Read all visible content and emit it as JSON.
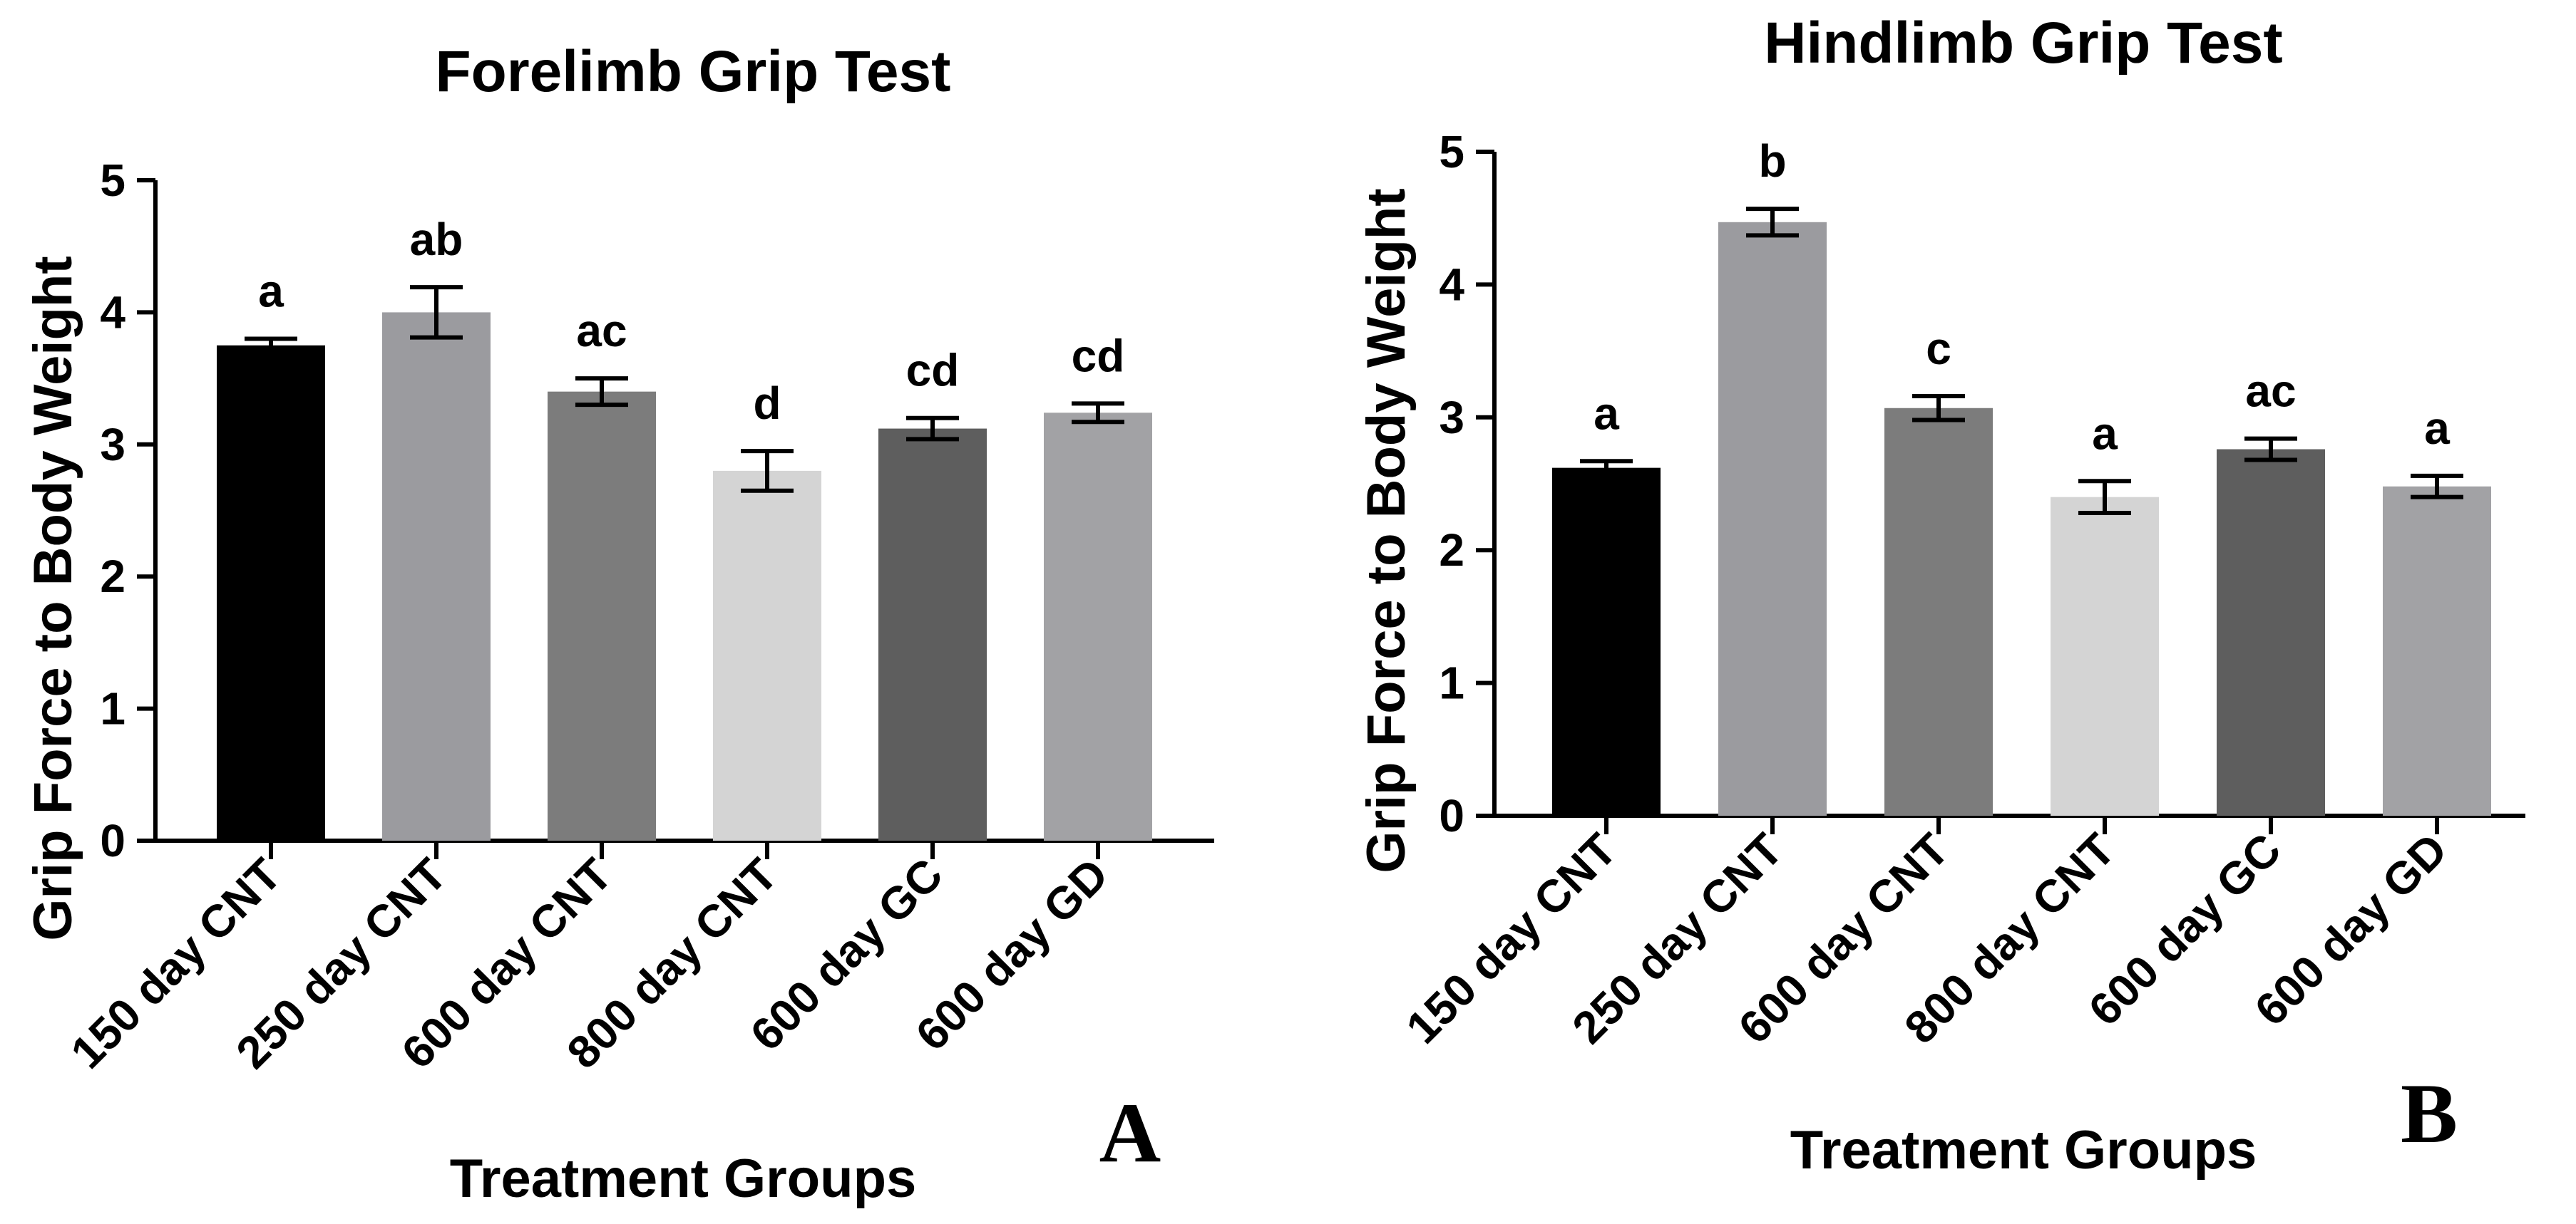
{
  "chart_data": [
    {
      "type": "bar",
      "title": "Forelimb Grip Test",
      "xlabel": "Treatment Groups",
      "ylabel": "Grip Force to Body Weight",
      "panel_label": "A",
      "ylim": [
        0,
        5
      ],
      "yticks": [
        0,
        1,
        2,
        3,
        4,
        5
      ],
      "categories": [
        "150 day CNT",
        "250 day CNT",
        "600 day CNT",
        "800 day CNT",
        "600 day GC",
        "600 day GD"
      ],
      "values": [
        3.75,
        4.0,
        3.4,
        2.8,
        3.12,
        3.24
      ],
      "errors": [
        0.05,
        0.19,
        0.1,
        0.15,
        0.08,
        0.07
      ],
      "annotations": [
        "a",
        "ab",
        "ac",
        "d",
        "cd",
        "cd"
      ],
      "colors": [
        "#000000",
        "#9b9b9f",
        "#7c7c7c",
        "#d4d4d4",
        "#5e5e5e",
        "#a2a2a5"
      ],
      "grid": false
    },
    {
      "type": "bar",
      "title": "Hindlimb Grip Test",
      "xlabel": "Treatment Groups",
      "ylabel": "Grip Force to Body Weight",
      "panel_label": "B",
      "ylim": [
        0,
        5
      ],
      "yticks": [
        0,
        1,
        2,
        3,
        4,
        5
      ],
      "categories": [
        "150 day CNT",
        "250 day CNT",
        "600 day CNT",
        "800 day CNT",
        "600 day GC",
        "600 day GD"
      ],
      "values": [
        2.62,
        4.47,
        3.07,
        2.4,
        2.76,
        2.48
      ],
      "errors": [
        0.05,
        0.1,
        0.09,
        0.12,
        0.08,
        0.08
      ],
      "annotations": [
        "a",
        "b",
        "c",
        "a",
        "ac",
        "a"
      ],
      "colors": [
        "#000000",
        "#9b9b9f",
        "#7c7c7c",
        "#d4d4d4",
        "#5e5e5e",
        "#a2a2a5"
      ],
      "grid": false
    }
  ]
}
